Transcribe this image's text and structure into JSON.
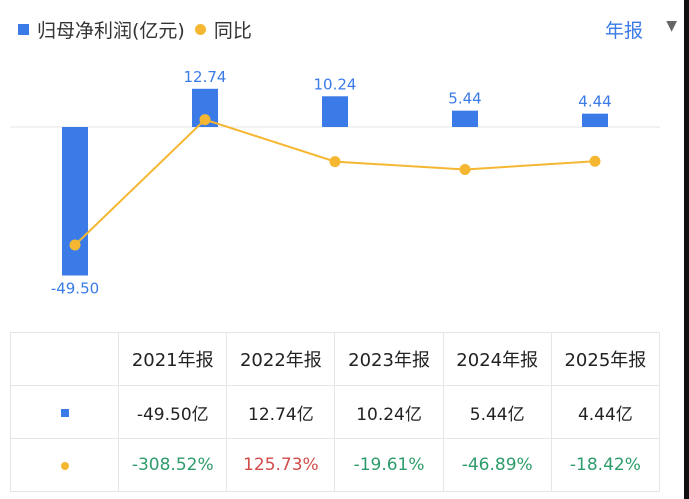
{
  "legend": {
    "bar_label": "归母净利润(亿元)",
    "line_label": "同比"
  },
  "period_selector": {
    "label": "年报",
    "caret": "▼"
  },
  "colors": {
    "bar": "#3a7be8",
    "line": "#f5b731",
    "positive": "#d24b4b",
    "negative": "#2e9c6a",
    "baseline": "#e5e5e5"
  },
  "chart_data": {
    "type": "bar",
    "categories": [
      "2021年报",
      "2022年报",
      "2023年报",
      "2024年报",
      "2025年报"
    ],
    "series": [
      {
        "name": "归母净利润(亿元)",
        "type": "bar",
        "values": [
          -49.5,
          12.74,
          10.24,
          5.44,
          4.44
        ],
        "labels": [
          "-49.50",
          "12.74",
          "10.24",
          "5.44",
          "4.44"
        ]
      },
      {
        "name": "同比",
        "type": "line",
        "values": [
          -308.52,
          125.73,
          -19.61,
          -46.89,
          -18.42
        ]
      }
    ]
  },
  "table": {
    "headers": [
      "2021年报",
      "2022年报",
      "2023年报",
      "2024年报",
      "2025年报"
    ],
    "profit_row": [
      "-49.50亿",
      "12.74亿",
      "10.24亿",
      "5.44亿",
      "4.44亿"
    ],
    "yoy_row": [
      "-308.52%",
      "125.73%",
      "-19.61%",
      "-46.89%",
      "-18.42%"
    ]
  }
}
